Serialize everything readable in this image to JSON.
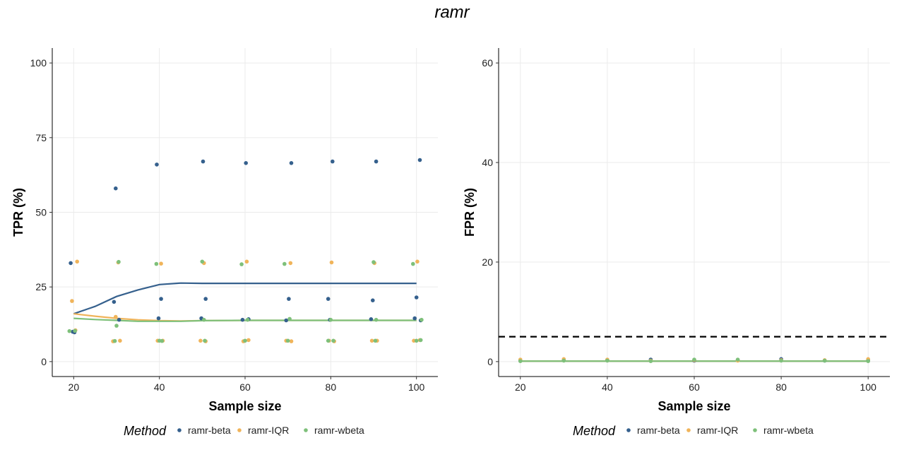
{
  "figure_title": "ramr",
  "legend": {
    "title": "Method",
    "entries": [
      {
        "label": "ramr-beta",
        "color": "#35608D"
      },
      {
        "label": "ramr-IQR",
        "color": "#F0B45A"
      },
      {
        "label": "ramr-wbeta",
        "color": "#7EC07A"
      }
    ]
  },
  "chart_data": [
    {
      "type": "scatter",
      "xlabel": "Sample size",
      "ylabel": "TPR (%)",
      "xlim": [
        15,
        105
      ],
      "ylim": [
        -5,
        105
      ],
      "xticks": [
        20,
        40,
        60,
        80,
        100
      ],
      "yticks": [
        0,
        25,
        50,
        75,
        100
      ],
      "grid": true,
      "series": [
        {
          "name": "ramr-beta",
          "points": [
            [
              19.3,
              33
            ],
            [
              19.8,
              10
            ],
            [
              20.2,
              9.8
            ],
            [
              29.4,
              20
            ],
            [
              29.8,
              58
            ],
            [
              30.6,
              14
            ],
            [
              39.4,
              66
            ],
            [
              39.8,
              14.5
            ],
            [
              40.4,
              21
            ],
            [
              49.8,
              14.5
            ],
            [
              50.2,
              67
            ],
            [
              50.8,
              21
            ],
            [
              59.4,
              14
            ],
            [
              60.2,
              66.5
            ],
            [
              60.8,
              14.2
            ],
            [
              69.6,
              13.8
            ],
            [
              70.2,
              21
            ],
            [
              70.8,
              66.5
            ],
            [
              79.4,
              21
            ],
            [
              79.8,
              14
            ],
            [
              80.4,
              67
            ],
            [
              89.4,
              14.2
            ],
            [
              89.8,
              20.5
            ],
            [
              90.6,
              67
            ],
            [
              99.6,
              14.5
            ],
            [
              100,
              21.5
            ],
            [
              100.8,
              67.5
            ],
            [
              101,
              13.8
            ]
          ],
          "trend": [
            [
              20,
              16
            ],
            [
              25,
              18.5
            ],
            [
              30,
              21.8
            ],
            [
              35,
              24
            ],
            [
              40,
              25.8
            ],
            [
              45,
              26.3
            ],
            [
              50,
              26.2
            ],
            [
              60,
              26.2
            ],
            [
              70,
              26.2
            ],
            [
              80,
              26.2
            ],
            [
              90,
              26.2
            ],
            [
              100,
              26.2
            ]
          ]
        },
        {
          "name": "ramr-IQR",
          "points": [
            [
              19.6,
              20.3
            ],
            [
              20.4,
              10.5
            ],
            [
              20.8,
              33.5
            ],
            [
              29.2,
              6.8
            ],
            [
              29.8,
              15
            ],
            [
              30.4,
              33.2
            ],
            [
              30.8,
              7
            ],
            [
              39.6,
              7
            ],
            [
              40.4,
              32.8
            ],
            [
              40.8,
              7
            ],
            [
              49.6,
              7
            ],
            [
              50.4,
              33
            ],
            [
              50.8,
              6.8
            ],
            [
              59.6,
              6.8
            ],
            [
              60.4,
              33.5
            ],
            [
              60.8,
              7.2
            ],
            [
              69.6,
              7
            ],
            [
              70.6,
              33
            ],
            [
              70.8,
              6.8
            ],
            [
              79.6,
              7
            ],
            [
              80.2,
              33.2
            ],
            [
              80.8,
              6.8
            ],
            [
              89.6,
              7
            ],
            [
              90.2,
              33
            ],
            [
              90.8,
              7
            ],
            [
              99.4,
              7
            ],
            [
              100.2,
              33.5
            ],
            [
              100.8,
              7.2
            ]
          ],
          "trend": [
            [
              20,
              16
            ],
            [
              25,
              15.2
            ],
            [
              30,
              14.5
            ],
            [
              35,
              14
            ],
            [
              40,
              13.7
            ],
            [
              45,
              13.6
            ],
            [
              50,
              13.7
            ],
            [
              60,
              13.8
            ],
            [
              70,
              13.8
            ],
            [
              80,
              13.8
            ],
            [
              90,
              13.8
            ],
            [
              100,
              13.8
            ]
          ]
        },
        {
          "name": "ramr-wbeta",
          "points": [
            [
              19,
              10.2
            ],
            [
              20.3,
              10.3
            ],
            [
              29.6,
              6.9
            ],
            [
              30,
              12
            ],
            [
              30.5,
              33.4
            ],
            [
              39.3,
              32.7
            ],
            [
              40,
              7
            ],
            [
              40.6,
              6.9
            ],
            [
              50,
              33.5
            ],
            [
              50.4,
              14
            ],
            [
              50.6,
              7
            ],
            [
              59.2,
              32.6
            ],
            [
              60,
              7
            ],
            [
              60.6,
              14
            ],
            [
              69.2,
              32.7
            ],
            [
              70,
              7
            ],
            [
              70.4,
              14.3
            ],
            [
              79.4,
              7
            ],
            [
              80,
              14
            ],
            [
              80.6,
              7
            ],
            [
              90,
              33.3
            ],
            [
              90.4,
              7
            ],
            [
              90.6,
              14
            ],
            [
              99.2,
              32.7
            ],
            [
              100,
              7
            ],
            [
              101,
              7.2
            ],
            [
              101.2,
              14
            ]
          ],
          "trend": [
            [
              20,
              14.5
            ],
            [
              25,
              14.1
            ],
            [
              30,
              13.8
            ],
            [
              35,
              13.5
            ],
            [
              40,
              13.5
            ],
            [
              45,
              13.5
            ],
            [
              50,
              13.7
            ],
            [
              60,
              13.8
            ],
            [
              70,
              13.8
            ],
            [
              80,
              13.8
            ],
            [
              90,
              13.8
            ],
            [
              100,
              13.8
            ]
          ]
        }
      ]
    },
    {
      "type": "scatter",
      "xlabel": "Sample size",
      "ylabel": "FPR (%)",
      "xlim": [
        15,
        105
      ],
      "ylim": [
        -3,
        63
      ],
      "xticks": [
        20,
        40,
        60,
        80,
        100
      ],
      "yticks": [
        0,
        20,
        40,
        60
      ],
      "grid": true,
      "reference_line": {
        "y": 5,
        "style": "dashed"
      },
      "series": [
        {
          "name": "ramr-beta",
          "points": [
            [
              20,
              0.2
            ],
            [
              30,
              0.3
            ],
            [
              40,
              0.3
            ],
            [
              50,
              0.4
            ],
            [
              60,
              0.2
            ],
            [
              70,
              0.3
            ],
            [
              80,
              0.5
            ],
            [
              90,
              0.2
            ],
            [
              100,
              0.3
            ]
          ],
          "trend": [
            [
              20,
              0.1
            ],
            [
              100,
              0.1
            ]
          ]
        },
        {
          "name": "ramr-IQR",
          "points": [
            [
              20,
              0.4
            ],
            [
              30,
              0.5
            ],
            [
              40,
              0.4
            ],
            [
              50,
              0.2
            ],
            [
              60,
              0.3
            ],
            [
              70,
              0.2
            ],
            [
              80,
              0.3
            ],
            [
              90,
              0.3
            ],
            [
              100,
              0.5
            ]
          ],
          "trend": [
            [
              20,
              0.1
            ],
            [
              100,
              0.1
            ]
          ]
        },
        {
          "name": "ramr-wbeta",
          "points": [
            [
              20,
              0.1
            ],
            [
              30,
              0.2
            ],
            [
              40,
              0.2
            ],
            [
              50,
              0.1
            ],
            [
              60,
              0.4
            ],
            [
              70,
              0.4
            ],
            [
              80,
              0.2
            ],
            [
              90,
              0.2
            ],
            [
              100,
              0.1
            ]
          ],
          "trend": [
            [
              20,
              0.1
            ],
            [
              100,
              0.1
            ]
          ]
        }
      ]
    }
  ]
}
